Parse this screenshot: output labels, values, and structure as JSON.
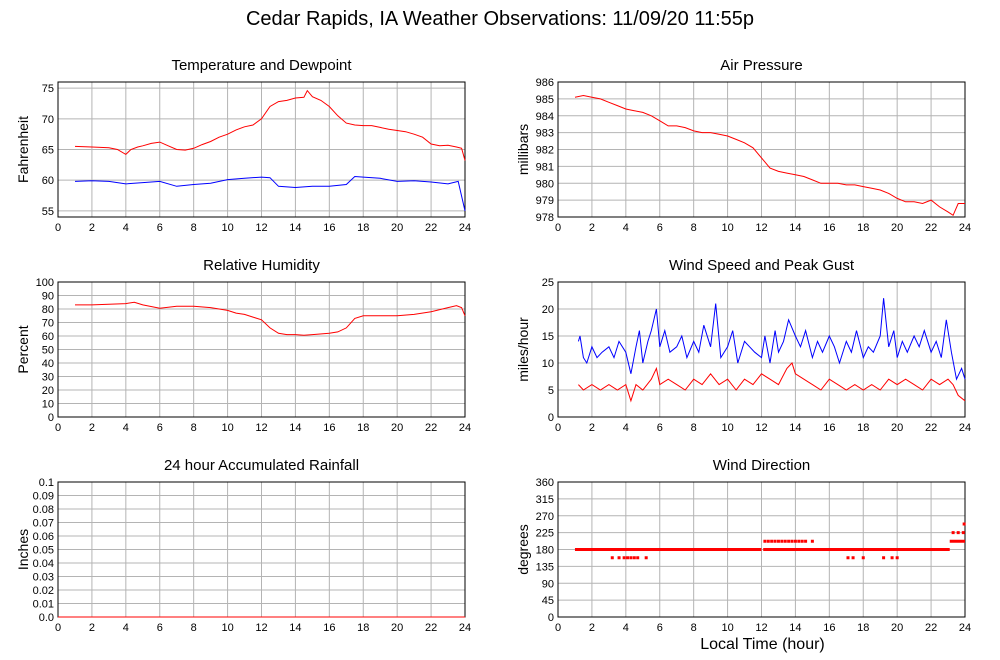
{
  "title": "Cedar Rapids, IA Weather Observations: 11/09/20 11:55p",
  "xaxis_title": "Local Time (hour)",
  "colors": {
    "temperature": "#ff0000",
    "dewpoint": "#0000ff",
    "grid": "#b4b4b4",
    "axis": "#000000"
  },
  "chart_data": [
    {
      "id": "temp",
      "type": "line",
      "title": "Temperature and Dewpoint",
      "ylabel": "Fahrenheit",
      "xlim": [
        0,
        24
      ],
      "ylim": [
        54,
        76
      ],
      "xticks": [
        0,
        2,
        4,
        6,
        8,
        10,
        12,
        14,
        16,
        18,
        20,
        22,
        24
      ],
      "yticks": [
        55,
        60,
        65,
        70,
        75
      ],
      "grid": true,
      "series": [
        {
          "color": "#ff0000",
          "x": [
            1,
            2,
            3,
            3.5,
            4,
            4.3,
            4.7,
            5,
            5.5,
            6,
            6.5,
            7,
            7.5,
            8,
            8.5,
            9,
            9.5,
            10,
            10.5,
            11,
            11.5,
            12,
            12.5,
            13,
            13.5,
            14,
            14.5,
            14.7,
            15,
            15.5,
            16,
            16.5,
            17,
            17.5,
            18,
            18.5,
            19,
            19.5,
            20,
            20.5,
            21,
            21.5,
            22,
            22.5,
            23,
            23.5,
            23.8,
            24
          ],
          "y": [
            65.5,
            65.4,
            65.3,
            65,
            64.2,
            65,
            65.4,
            65.6,
            66,
            66.2,
            65.6,
            65,
            64.9,
            65.2,
            65.8,
            66.3,
            67,
            67.5,
            68.2,
            68.7,
            69,
            70,
            72,
            72.8,
            73,
            73.4,
            73.5,
            74.6,
            73.6,
            73,
            72,
            70.5,
            69.3,
            69,
            68.9,
            68.9,
            68.6,
            68.3,
            68.1,
            67.9,
            67.5,
            67,
            65.9,
            65.6,
            65.7,
            65.4,
            65.2,
            63.2
          ]
        },
        {
          "color": "#0000ff",
          "x": [
            1,
            2,
            3,
            4,
            5,
            6,
            7,
            8,
            9,
            10,
            11,
            12,
            12.5,
            13,
            14,
            15,
            16,
            17,
            17.5,
            18,
            19,
            20,
            21,
            22,
            23,
            23.6,
            24
          ],
          "y": [
            59.8,
            59.9,
            59.8,
            59.4,
            59.6,
            59.8,
            59,
            59.3,
            59.5,
            60.1,
            60.3,
            60.5,
            60.4,
            59,
            58.8,
            59,
            59,
            59.3,
            60.6,
            60.5,
            60.3,
            59.8,
            59.9,
            59.7,
            59.4,
            59.8,
            55
          ]
        }
      ]
    },
    {
      "id": "press",
      "type": "line",
      "title": "Air Pressure",
      "ylabel": "millibars",
      "xlim": [
        0,
        24
      ],
      "ylim": [
        978,
        986
      ],
      "xticks": [
        0,
        2,
        4,
        6,
        8,
        10,
        12,
        14,
        16,
        18,
        20,
        22,
        24
      ],
      "yticks": [
        978,
        979,
        980,
        981,
        982,
        983,
        984,
        985,
        986
      ],
      "grid": true,
      "series": [
        {
          "color": "#ff0000",
          "x": [
            1,
            1.5,
            2,
            2.5,
            3,
            3.5,
            4,
            4.5,
            5,
            5.5,
            6,
            6.5,
            7,
            7.5,
            8,
            8.5,
            9,
            9.5,
            10,
            10.5,
            11,
            11.5,
            12,
            12.5,
            13,
            13.5,
            14,
            14.5,
            15,
            15.5,
            16,
            16.5,
            17,
            17.5,
            18,
            18.5,
            19,
            19.5,
            20,
            20.5,
            21,
            21.5,
            22,
            22.5,
            23,
            23.3,
            23.6,
            24
          ],
          "y": [
            985.1,
            985.2,
            985.1,
            985,
            984.8,
            984.6,
            984.4,
            984.3,
            984.2,
            984,
            983.7,
            983.4,
            983.4,
            983.3,
            983.1,
            983,
            983,
            982.9,
            982.8,
            982.6,
            982.4,
            982.1,
            981.5,
            980.9,
            980.7,
            980.6,
            980.5,
            980.4,
            980.2,
            980,
            980,
            980,
            979.9,
            979.9,
            979.8,
            979.7,
            979.6,
            979.4,
            979.1,
            978.9,
            978.9,
            978.8,
            979,
            978.6,
            978.3,
            978.1,
            978.8,
            978.8
          ]
        }
      ]
    },
    {
      "id": "rh",
      "type": "line",
      "title": "Relative Humidity",
      "ylabel": "Percent",
      "xlim": [
        0,
        24
      ],
      "ylim": [
        0,
        100
      ],
      "xticks": [
        0,
        2,
        4,
        6,
        8,
        10,
        12,
        14,
        16,
        18,
        20,
        22,
        24
      ],
      "yticks": [
        0,
        10,
        20,
        30,
        40,
        50,
        60,
        70,
        80,
        90,
        100
      ],
      "grid": true,
      "series": [
        {
          "color": "#ff0000",
          "x": [
            1,
            2,
            3,
            4,
            4.5,
            5,
            6,
            7,
            8,
            9,
            10,
            10.5,
            11,
            11.5,
            12,
            12.5,
            13,
            13.5,
            14,
            14.5,
            15,
            16,
            16.5,
            17,
            17.5,
            18,
            19,
            20,
            21,
            22,
            23,
            23.5,
            23.8,
            24
          ],
          "y": [
            83,
            83,
            83.5,
            84,
            85,
            83,
            80.5,
            82,
            82,
            81,
            79,
            77,
            76,
            74,
            72,
            66,
            62,
            61,
            61,
            60.5,
            61,
            62,
            63,
            66,
            73,
            75,
            75,
            75,
            76,
            78,
            81,
            82.5,
            81,
            75
          ]
        }
      ]
    },
    {
      "id": "wind",
      "type": "line",
      "title": "Wind Speed and Peak Gust",
      "ylabel": "miles/hour",
      "xlim": [
        0,
        24
      ],
      "ylim": [
        0,
        25
      ],
      "xticks": [
        0,
        2,
        4,
        6,
        8,
        10,
        12,
        14,
        16,
        18,
        20,
        22,
        24
      ],
      "yticks": [
        0,
        5,
        10,
        15,
        20,
        25
      ],
      "grid": true,
      "series": [
        {
          "color": "#0000ff",
          "x": [
            1.2,
            1.3,
            1.5,
            1.7,
            2,
            2.3,
            2.6,
            3,
            3.3,
            3.6,
            4,
            4.3,
            4.6,
            4.8,
            5,
            5.3,
            5.5,
            5.8,
            6,
            6.3,
            6.6,
            7,
            7.3,
            7.6,
            8,
            8.3,
            8.6,
            9,
            9.3,
            9.6,
            10,
            10.3,
            10.6,
            11,
            11.3,
            11.6,
            12,
            12.2,
            12.5,
            12.8,
            13,
            13.3,
            13.6,
            14,
            14.3,
            14.6,
            15,
            15.3,
            15.6,
            16,
            16.3,
            16.6,
            17,
            17.3,
            17.6,
            18,
            18.3,
            18.6,
            19,
            19.2,
            19.5,
            19.8,
            20,
            20.3,
            20.6,
            21,
            21.3,
            21.6,
            22,
            22.3,
            22.6,
            22.9,
            23.2,
            23.5,
            23.8,
            24
          ],
          "y": [
            14,
            15,
            11,
            10,
            13,
            11,
            12,
            13,
            11,
            14,
            12,
            8,
            13,
            16,
            10,
            14,
            16,
            20,
            13,
            16,
            12,
            13,
            15,
            11,
            14,
            12,
            17,
            13,
            21,
            11,
            13,
            16,
            10,
            14,
            13,
            12,
            11,
            15,
            10,
            16,
            12,
            14,
            18,
            15,
            13,
            16,
            11,
            14,
            12,
            15,
            13,
            10,
            14,
            12,
            16,
            11,
            13,
            12,
            15,
            22,
            13,
            16,
            11,
            14,
            12,
            15,
            13,
            16,
            12,
            14,
            11,
            18,
            12,
            7,
            9,
            7
          ]
        },
        {
          "color": "#ff0000",
          "x": [
            1.2,
            1.5,
            2,
            2.5,
            3,
            3.5,
            4,
            4.3,
            4.6,
            5,
            5.5,
            5.8,
            6,
            6.5,
            7,
            7.5,
            8,
            8.5,
            9,
            9.5,
            10,
            10.5,
            11,
            11.5,
            12,
            12.5,
            13,
            13.5,
            13.8,
            14,
            14.5,
            15,
            15.5,
            16,
            16.5,
            17,
            17.5,
            18,
            18.5,
            19,
            19.5,
            20,
            20.5,
            21,
            21.5,
            22,
            22.5,
            23,
            23.3,
            23.6,
            24
          ],
          "y": [
            6,
            5,
            6,
            5,
            6,
            5,
            6,
            3,
            6,
            5,
            7,
            9,
            6,
            7,
            6,
            5,
            7,
            6,
            8,
            6,
            7,
            5,
            7,
            6,
            8,
            7,
            6,
            9,
            10,
            8,
            7,
            6,
            5,
            7,
            6,
            5,
            6,
            5,
            6,
            5,
            7,
            6,
            7,
            6,
            5,
            7,
            6,
            7,
            6,
            4,
            3
          ]
        }
      ]
    },
    {
      "id": "rain",
      "type": "line",
      "title": "24 hour Accumulated Rainfall",
      "ylabel": "Inches",
      "xlim": [
        0,
        24
      ],
      "ylim": [
        0,
        0.1
      ],
      "xticks": [
        0,
        2,
        4,
        6,
        8,
        10,
        12,
        14,
        16,
        18,
        20,
        22,
        24
      ],
      "yticks": [
        0,
        0.01,
        0.02,
        0.03,
        0.04,
        0.05,
        0.06,
        0.07,
        0.08,
        0.09,
        0.1
      ],
      "ytick_labels": [
        "0.0",
        "0.01",
        "0.02",
        "0.03",
        "0.04",
        "0.05",
        "0.06",
        "0.07",
        "0.08",
        "0.09",
        "0.1"
      ],
      "grid": true,
      "series": [
        {
          "color": "#ff0000",
          "x": [
            0,
            24
          ],
          "y": [
            0,
            0
          ]
        }
      ]
    },
    {
      "id": "dir",
      "type": "scatter",
      "title": "Wind Direction",
      "ylabel": "degrees",
      "xlim": [
        0,
        24
      ],
      "ylim": [
        0,
        360
      ],
      "xticks": [
        0,
        2,
        4,
        6,
        8,
        10,
        12,
        14,
        16,
        18,
        20,
        22,
        24
      ],
      "yticks": [
        0,
        45,
        90,
        135,
        180,
        225,
        270,
        315,
        360
      ],
      "grid": true,
      "series": [
        {
          "color": "#ff0000",
          "segments": [
            {
              "x0": 1,
              "x1": 12.0,
              "y": 180
            },
            {
              "x0": 12.1,
              "x1": 23.1,
              "y": 180
            },
            {
              "x0": 23.1,
              "x1": 24,
              "y": 202
            }
          ],
          "x": [
            3.2,
            3.6,
            3.9,
            4.1,
            4.3,
            4.5,
            4.7,
            5.2,
            12.2,
            12.4,
            12.6,
            12.8,
            13.0,
            13.2,
            13.4,
            13.6,
            13.8,
            14.0,
            14.2,
            14.4,
            14.6,
            15.0,
            13.3,
            14.1,
            17.1,
            17.4,
            18.0,
            19.2,
            19.7,
            20.0,
            23.3,
            23.6,
            23.9,
            23.95
          ],
          "y": [
            158,
            158,
            158,
            158,
            158,
            158,
            158,
            158,
            202,
            202,
            202,
            202,
            202,
            202,
            202,
            202,
            202,
            202,
            202,
            202,
            202,
            202,
            180,
            180,
            158,
            158,
            158,
            158,
            158,
            158,
            225,
            225,
            225,
            248
          ]
        }
      ]
    }
  ]
}
